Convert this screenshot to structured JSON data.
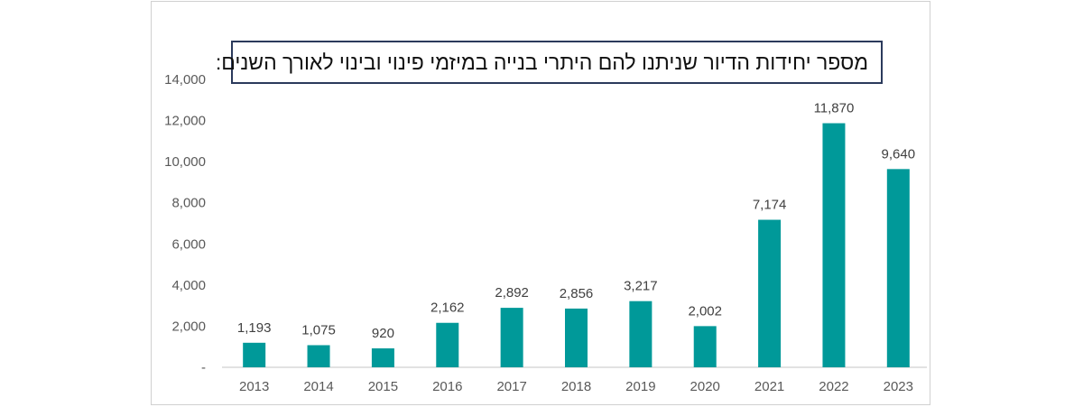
{
  "chart_data": {
    "type": "bar",
    "title": "מספר יחידות הדיור שניתנו להם היתרי בנייה במיזמי פינוי ובינוי לאורך השנים:",
    "categories": [
      "2013",
      "2014",
      "2015",
      "2016",
      "2017",
      "2018",
      "2019",
      "2020",
      "2021",
      "2022",
      "2023"
    ],
    "values": [
      1193,
      1075,
      920,
      2162,
      2892,
      2856,
      3217,
      2002,
      7174,
      11870,
      9640
    ],
    "data_labels": [
      "1,193",
      "1,075",
      "920",
      "2,162",
      "2,892",
      "2,856",
      "3,217",
      "2,002",
      "7,174",
      "11,870",
      "9,640"
    ],
    "y_ticks": [
      "-",
      "2,000",
      "4,000",
      "6,000",
      "8,000",
      "10,000",
      "12,000",
      "14,000"
    ],
    "ylim": [
      0,
      14000
    ],
    "xlabel": "",
    "ylabel": "",
    "grid": false,
    "legend": "none",
    "bar_color": "#009999",
    "axis_color": "#d9d9d9"
  }
}
